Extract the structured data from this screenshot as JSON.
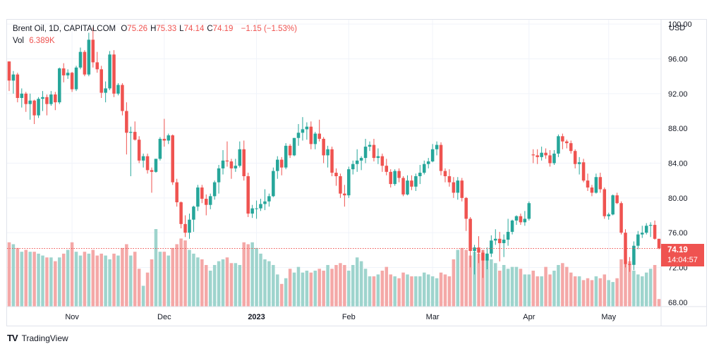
{
  "header": {
    "symbol": "Brent Oil, 1D, CAPITALCOM",
    "ohlc": [
      {
        "key": "O",
        "value": "75.26"
      },
      {
        "key": "H",
        "value": "75.33"
      },
      {
        "key": "L",
        "value": "74.14"
      },
      {
        "key": "C",
        "value": "74.19"
      }
    ],
    "change": "−1.15 (−1.53%)",
    "vol_label": "Vol",
    "vol_value": "6.389K"
  },
  "currency": "USD",
  "last_price": {
    "value": "74.19",
    "countdown": "14:04:57"
  },
  "brand": {
    "name": "TradingView",
    "logo": "TV"
  },
  "colors": {
    "up": "#26a69a",
    "down": "#ef5350",
    "vol_up": "#9ed4cd",
    "vol_down": "#f4a8a7",
    "grid": "#f0f3fa",
    "text": "#131722"
  },
  "chart_data": {
    "type": "candlestick",
    "symbol": "Brent Oil",
    "interval": "1D",
    "y_axis": {
      "ticks": [
        "100.00",
        "96.00",
        "92.00",
        "88.00",
        "84.00",
        "80.00",
        "76.00",
        "72.00",
        "68.00"
      ],
      "range": [
        67.5,
        100.5
      ]
    },
    "x_axis": {
      "ticks": [
        {
          "label": "Nov",
          "index": 15
        },
        {
          "label": "Dec",
          "index": 37
        },
        {
          "label": "2023",
          "index": 59
        },
        {
          "label": "Feb",
          "index": 81
        },
        {
          "label": "Mar",
          "index": 101
        },
        {
          "label": "Apr",
          "index": 124
        },
        {
          "label": "May",
          "index": 143
        }
      ]
    },
    "last_value_line": 74.19,
    "candles": [
      [
        95.7,
        95.7,
        92.3,
        93.5
      ],
      [
        93.5,
        94.6,
        92.0,
        94.2
      ],
      [
        94.2,
        94.4,
        91.0,
        91.5
      ],
      [
        91.5,
        92.6,
        90.4,
        92.0
      ],
      [
        92.0,
        92.2,
        89.9,
        90.8
      ],
      [
        90.8,
        92.0,
        89.0,
        91.2
      ],
      [
        91.2,
        91.3,
        88.5,
        89.5
      ],
      [
        89.5,
        91.6,
        89.2,
        91.4
      ],
      [
        91.4,
        92.3,
        90.0,
        91.6
      ],
      [
        91.6,
        91.9,
        89.5,
        90.8
      ],
      [
        90.8,
        92.3,
        90.6,
        91.9
      ],
      [
        91.9,
        92.2,
        90.1,
        91.0
      ],
      [
        91.0,
        95.0,
        90.8,
        94.9
      ],
      [
        94.9,
        95.5,
        93.3,
        94.1
      ],
      [
        94.1,
        94.8,
        93.7,
        94.4
      ],
      [
        94.4,
        94.5,
        92.2,
        92.5
      ],
      [
        92.5,
        95.2,
        92.3,
        95.0
      ],
      [
        95.0,
        97.3,
        94.8,
        96.8
      ],
      [
        96.8,
        97.0,
        94.0,
        94.2
      ],
      [
        94.2,
        99.0,
        94.0,
        98.2
      ],
      [
        98.2,
        99.6,
        95.0,
        95.6
      ],
      [
        95.6,
        96.8,
        94.4,
        94.8
      ],
      [
        94.8,
        95.2,
        91.5,
        92.1
      ],
      [
        92.1,
        93.4,
        91.0,
        92.6
      ],
      [
        92.6,
        96.9,
        92.4,
        96.5
      ],
      [
        96.5,
        97.0,
        91.6,
        92.0
      ],
      [
        92.0,
        93.2,
        91.8,
        93.0
      ],
      [
        93.0,
        93.2,
        89.5,
        90.0
      ],
      [
        90.0,
        91.0,
        85.0,
        87.5
      ],
      [
        87.5,
        88.2,
        82.5,
        87.6
      ],
      [
        87.6,
        88.8,
        86.6,
        86.7
      ],
      [
        86.7,
        87.1,
        84.0,
        84.3
      ],
      [
        84.3,
        85.1,
        83.5,
        84.8
      ],
      [
        84.8,
        85.1,
        82.8,
        83.2
      ],
      [
        83.2,
        83.5,
        80.6,
        83.0
      ],
      [
        83.0,
        84.5,
        82.9,
        84.5
      ],
      [
        84.5,
        87.0,
        84.3,
        86.8
      ],
      [
        86.8,
        89.1,
        85.9,
        86.6
      ],
      [
        86.6,
        87.4,
        86.2,
        87.2
      ],
      [
        87.2,
        87.3,
        81.5,
        81.8
      ],
      [
        81.8,
        82.2,
        79.0,
        79.5
      ],
      [
        79.5,
        79.6,
        76.5,
        77.0
      ],
      [
        77.0,
        78.0,
        75.5,
        76.0
      ],
      [
        76.0,
        78.2,
        75.3,
        77.5
      ],
      [
        77.5,
        79.1,
        76.1,
        79.0
      ],
      [
        79.0,
        81.5,
        78.5,
        81.2
      ],
      [
        81.2,
        81.5,
        79.4,
        79.9
      ],
      [
        79.9,
        80.4,
        78.0,
        79.2
      ],
      [
        79.2,
        80.5,
        78.7,
        80.2
      ],
      [
        80.2,
        82.0,
        79.8,
        81.8
      ],
      [
        81.8,
        83.8,
        80.5,
        83.4
      ],
      [
        83.4,
        85.5,
        82.7,
        84.3
      ],
      [
        84.3,
        86.5,
        83.6,
        84.2
      ],
      [
        84.2,
        84.5,
        82.2,
        83.4
      ],
      [
        83.4,
        84.5,
        83.0,
        83.7
      ],
      [
        83.7,
        86.5,
        83.5,
        85.6
      ],
      [
        85.6,
        86.6,
        82.0,
        82.5
      ],
      [
        82.5,
        82.9,
        77.8,
        78.2
      ],
      [
        78.2,
        79.2,
        77.7,
        78.8
      ],
      [
        78.8,
        79.7,
        77.6,
        78.8
      ],
      [
        78.8,
        79.9,
        78.5,
        79.3
      ],
      [
        79.3,
        81.0,
        78.6,
        79.6
      ],
      [
        79.6,
        80.5,
        79.0,
        80.2
      ],
      [
        80.2,
        83.5,
        80.1,
        83.1
      ],
      [
        83.1,
        84.8,
        82.2,
        84.4
      ],
      [
        84.4,
        84.7,
        82.6,
        83.5
      ],
      [
        83.5,
        86.3,
        83.3,
        86.0
      ],
      [
        86.0,
        86.2,
        84.6,
        84.9
      ],
      [
        84.9,
        86.9,
        84.8,
        86.9
      ],
      [
        86.9,
        88.5,
        86.0,
        87.5
      ],
      [
        87.5,
        89.3,
        86.6,
        87.9
      ],
      [
        87.9,
        88.7,
        86.7,
        88.2
      ],
      [
        88.2,
        88.8,
        85.6,
        86.2
      ],
      [
        86.2,
        87.6,
        85.6,
        87.4
      ],
      [
        87.4,
        89.0,
        86.5,
        86.8
      ],
      [
        86.8,
        87.0,
        84.0,
        84.9
      ],
      [
        84.9,
        86.0,
        83.5,
        85.6
      ],
      [
        85.6,
        85.9,
        82.5,
        82.9
      ],
      [
        82.9,
        83.4,
        81.4,
        82.5
      ],
      [
        82.5,
        82.8,
        80.0,
        80.5
      ],
      [
        80.5,
        81.5,
        79.0,
        80.3
      ],
      [
        80.3,
        83.6,
        80.0,
        83.3
      ],
      [
        83.3,
        84.3,
        82.7,
        83.9
      ],
      [
        83.9,
        85.6,
        83.0,
        84.3
      ],
      [
        84.3,
        84.8,
        83.2,
        84.6
      ],
      [
        84.6,
        86.8,
        84.0,
        85.9
      ],
      [
        85.9,
        86.5,
        85.4,
        86.1
      ],
      [
        86.1,
        86.8,
        84.2,
        84.6
      ],
      [
        84.6,
        85.7,
        83.9,
        84.8
      ],
      [
        84.8,
        85.1,
        83.0,
        83.7
      ],
      [
        83.7,
        84.5,
        82.6,
        83.0
      ],
      [
        83.0,
        83.3,
        81.2,
        81.6
      ],
      [
        81.6,
        83.3,
        81.4,
        83.1
      ],
      [
        83.1,
        83.4,
        81.8,
        82.3
      ],
      [
        82.3,
        82.5,
        80.2,
        80.4
      ],
      [
        80.4,
        82.6,
        80.3,
        82.0
      ],
      [
        82.0,
        82.6,
        80.9,
        81.3
      ],
      [
        81.3,
        82.8,
        80.8,
        82.5
      ],
      [
        82.5,
        83.8,
        81.6,
        82.9
      ],
      [
        82.9,
        84.3,
        82.7,
        83.9
      ],
      [
        83.9,
        84.6,
        83.4,
        84.2
      ],
      [
        84.2,
        86.2,
        84.1,
        85.6
      ],
      [
        85.6,
        86.5,
        84.9,
        86.1
      ],
      [
        86.1,
        86.4,
        82.6,
        83.1
      ],
      [
        83.1,
        83.4,
        81.8,
        82.5
      ],
      [
        82.5,
        83.3,
        81.3,
        81.8
      ],
      [
        81.8,
        82.4,
        80.0,
        80.6
      ],
      [
        80.6,
        82.4,
        79.8,
        82.0
      ],
      [
        82.0,
        82.3,
        79.6,
        80.0
      ],
      [
        80.0,
        80.1,
        76.2,
        77.6
      ],
      [
        77.6,
        77.8,
        72.0,
        73.9
      ],
      [
        73.9,
        74.6,
        71.2,
        74.3
      ],
      [
        74.3,
        75.6,
        72.5,
        73.7
      ],
      [
        73.7,
        74.0,
        70.8,
        72.8
      ],
      [
        72.8,
        74.3,
        71.8,
        73.6
      ],
      [
        73.6,
        75.7,
        73.2,
        75.1
      ],
      [
        75.1,
        76.4,
        74.6,
        75.3
      ],
      [
        75.3,
        76.1,
        72.7,
        74.8
      ],
      [
        74.8,
        75.8,
        73.2,
        75.2
      ],
      [
        75.2,
        77.6,
        74.5,
        76.1
      ],
      [
        76.1,
        77.5,
        75.8,
        77.4
      ],
      [
        77.4,
        78.0,
        76.9,
        77.9
      ],
      [
        77.9,
        78.2,
        76.9,
        77.2
      ],
      [
        77.2,
        78.5,
        76.8,
        77.6
      ],
      [
        77.6,
        79.6,
        77.4,
        79.4
      ],
      [
        85.0,
        85.6,
        84.0,
        84.9
      ],
      [
        84.9,
        85.6,
        83.9,
        84.7
      ],
      [
        84.7,
        85.9,
        84.3,
        85.2
      ],
      [
        85.2,
        85.7,
        84.5,
        84.9
      ],
      [
        84.9,
        85.5,
        83.6,
        84.0
      ],
      [
        84.0,
        85.5,
        83.8,
        85.1
      ],
      [
        85.1,
        87.3,
        84.7,
        87.1
      ],
      [
        87.1,
        87.4,
        85.6,
        86.5
      ],
      [
        86.5,
        86.7,
        85.7,
        86.3
      ],
      [
        86.3,
        86.6,
        85.1,
        85.4
      ],
      [
        85.4,
        85.6,
        83.4,
        83.9
      ],
      [
        83.9,
        84.7,
        82.7,
        84.1
      ],
      [
        84.1,
        84.5,
        81.8,
        82.0
      ],
      [
        82.0,
        82.8,
        80.8,
        81.2
      ],
      [
        81.2,
        81.5,
        80.2,
        80.6
      ],
      [
        80.6,
        82.8,
        80.5,
        82.4
      ],
      [
        82.4,
        82.9,
        80.6,
        81.0
      ],
      [
        81.0,
        81.2,
        77.6,
        77.9
      ],
      [
        77.9,
        78.3,
        77.5,
        78.1
      ],
      [
        78.1,
        80.4,
        78.0,
        80.3
      ],
      [
        80.3,
        80.6,
        79.3,
        79.4
      ],
      [
        79.4,
        79.6,
        75.8,
        76.0
      ],
      [
        76.0,
        76.4,
        72.0,
        72.4
      ],
      [
        72.4,
        73.2,
        71.5,
        72.3
      ],
      [
        72.3,
        75.0,
        71.7,
        74.5
      ],
      [
        74.5,
        76.2,
        74.1,
        75.8
      ],
      [
        75.8,
        76.8,
        75.4,
        76.0
      ],
      [
        76.0,
        77.1,
        75.8,
        76.8
      ],
      [
        76.8,
        77.2,
        75.5,
        76.9
      ],
      [
        76.9,
        77.4,
        75.2,
        75.3
      ],
      [
        75.3,
        75.3,
        74.1,
        74.2
      ]
    ],
    "volume": [
      3.4,
      3.3,
      3.1,
      2.9,
      3.0,
      2.9,
      2.9,
      2.8,
      2.7,
      2.6,
      2.6,
      2.4,
      2.6,
      2.8,
      3.0,
      3.4,
      2.9,
      2.7,
      2.9,
      2.8,
      3.0,
      2.7,
      2.8,
      2.7,
      2.5,
      2.8,
      2.7,
      3.1,
      3.3,
      2.7,
      2.9,
      2.0,
      1.1,
      1.8,
      2.5,
      4.1,
      2.9,
      2.9,
      2.7,
      3.1,
      3.3,
      3.6,
      3.5,
      3.0,
      2.8,
      2.6,
      2.5,
      2.2,
      1.9,
      2.2,
      2.4,
      2.5,
      2.6,
      2.3,
      2.3,
      2.2,
      3.4,
      3.3,
      3.4,
      3.1,
      2.8,
      2.5,
      2.4,
      2.2,
      1.7,
      1.2,
      1.5,
      2.0,
      1.8,
      2.1,
      1.8,
      1.9,
      1.8,
      1.9,
      2.0,
      1.9,
      2.2,
      2.0,
      2.2,
      2.3,
      2.2,
      1.9,
      2.2,
      2.6,
      2.4,
      2.0,
      1.6,
      1.6,
      1.7,
      1.9,
      2.1,
      1.7,
      1.6,
      1.5,
      1.8,
      1.7,
      1.6,
      1.6,
      1.6,
      1.8,
      1.7,
      1.6,
      1.5,
      1.8,
      1.7,
      1.6,
      2.5,
      3.0,
      3.1,
      3.0,
      2.7,
      2.9,
      2.8,
      3.0,
      2.5,
      2.5,
      2.3,
      1.9,
      2.2,
      2.0,
      2.1,
      2.1,
      2.0,
      1.7,
      1.7,
      1.9,
      1.6,
      1.6,
      2.1,
      1.7,
      1.9,
      2.2,
      2.3,
      2.1,
      1.8,
      1.6,
      1.6,
      1.4,
      1.5,
      1.4,
      1.6,
      1.5,
      1.7,
      1.4,
      1.3,
      1.5,
      2.5,
      2.3,
      2.4,
      1.9,
      1.7,
      1.6,
      1.8,
      2.0,
      2.2,
      0.4
    ]
  }
}
